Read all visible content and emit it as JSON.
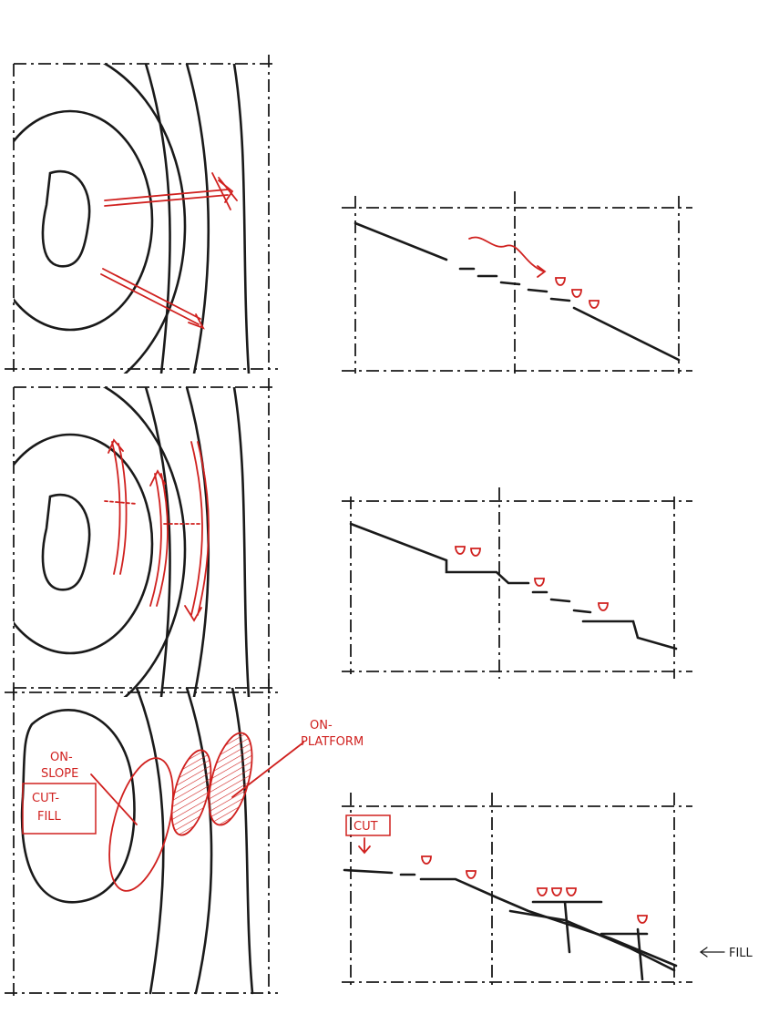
{
  "labels": {
    "on_platform": [
      "ON-",
      "PLATFORM"
    ],
    "on_slope": [
      "ON-",
      "SLOPE"
    ],
    "cut_fill": [
      "CUT-",
      "FILL"
    ],
    "cut": "CUT",
    "fill": "FILL"
  }
}
